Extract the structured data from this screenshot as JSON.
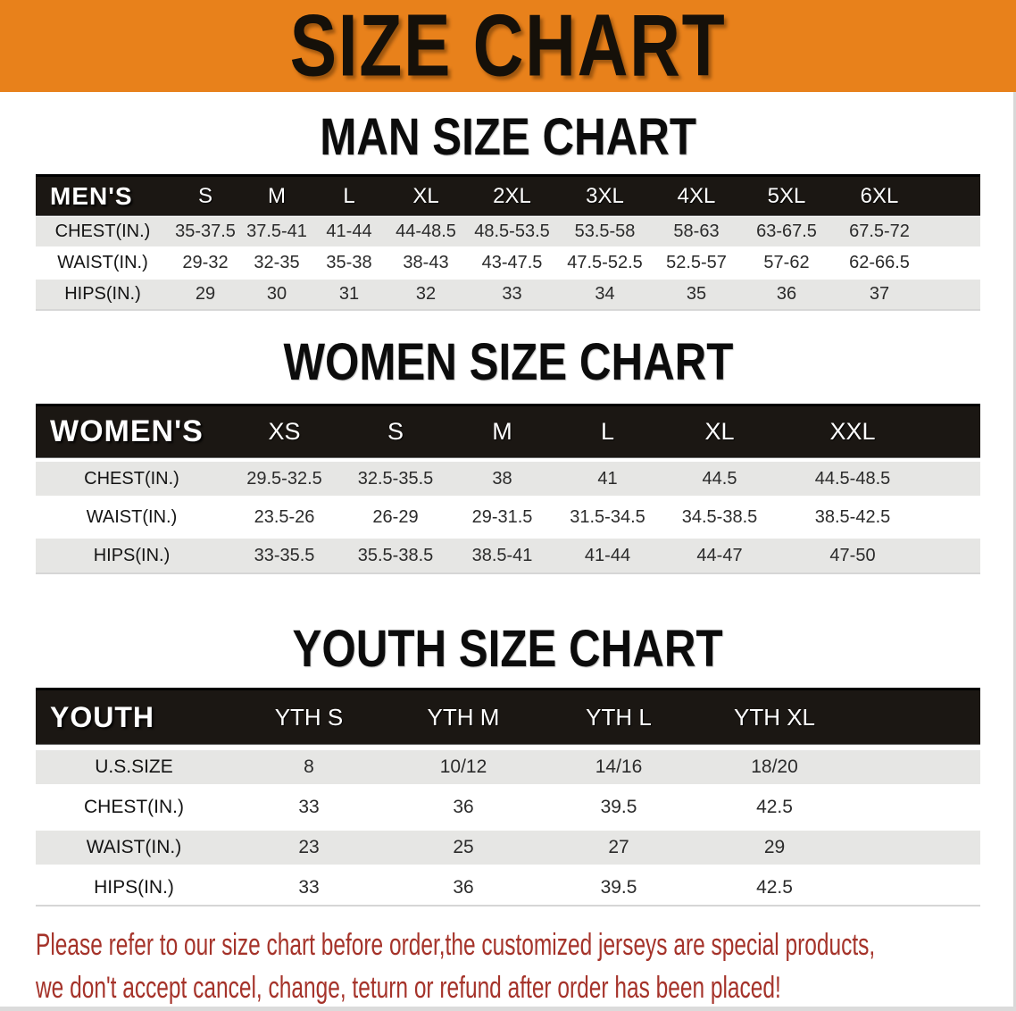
{
  "banner": {
    "title": "SIZE CHART",
    "bg_color": "#E8811B"
  },
  "colors": {
    "header_band": "#1B1713",
    "shaded_row": "#E6E6E4",
    "disclaimer_red": "#A5332A"
  },
  "sections": [
    {
      "title": "MAN SIZE CHART",
      "header_label": "MEN'S",
      "columns": [
        "S",
        "M",
        "L",
        "XL",
        "2XL",
        "3XL",
        "4XL",
        "5XL",
        "6XL"
      ],
      "rows": [
        {
          "label": "CHEST(IN.)",
          "values": [
            "35-37.5",
            "37.5-41",
            "41-44",
            "44-48.5",
            "48.5-53.5",
            "53.5-58",
            "58-63",
            "63-67.5",
            "67.5-72"
          ]
        },
        {
          "label": "WAIST(IN.)",
          "values": [
            "29-32",
            "32-35",
            "35-38",
            "38-43",
            "43-47.5",
            "47.5-52.5",
            "52.5-57",
            "57-62",
            "62-66.5"
          ]
        },
        {
          "label": "HIPS(IN.)",
          "values": [
            "29",
            "30",
            "31",
            "32",
            "33",
            "34",
            "35",
            "36",
            "37"
          ]
        }
      ]
    },
    {
      "title": "WOMEN SIZE CHART",
      "header_label": "WOMEN'S",
      "columns": [
        "XS",
        "S",
        "M",
        "L",
        "XL",
        "XXL"
      ],
      "rows": [
        {
          "label": "CHEST(IN.)",
          "values": [
            "29.5-32.5",
            "32.5-35.5",
            "38",
            "41",
            "44.5",
            "44.5-48.5"
          ]
        },
        {
          "label": "WAIST(IN.)",
          "values": [
            "23.5-26",
            "26-29",
            "29-31.5",
            "31.5-34.5",
            "34.5-38.5",
            "38.5-42.5"
          ]
        },
        {
          "label": "HIPS(IN.)",
          "values": [
            "33-35.5",
            "35.5-38.5",
            "38.5-41",
            "41-44",
            "44-47",
            "47-50"
          ]
        }
      ]
    },
    {
      "title": "YOUTH SIZE CHART",
      "header_label": "YOUTH",
      "columns": [
        "YTH S",
        "YTH M",
        "YTH L",
        "YTH XL"
      ],
      "rows": [
        {
          "label": "U.S.SIZE",
          "values": [
            "8",
            "10/12",
            "14/16",
            "18/20"
          ]
        },
        {
          "label": "CHEST(IN.)",
          "values": [
            "33",
            "36",
            "39.5",
            "42.5"
          ]
        },
        {
          "label": "WAIST(IN.)",
          "values": [
            "23",
            "25",
            "27",
            "29"
          ]
        },
        {
          "label": "HIPS(IN.)",
          "values": [
            "33",
            "36",
            "39.5",
            "42.5"
          ]
        }
      ]
    }
  ],
  "disclaimer": {
    "line1": "Please refer to our size chart before order,the customized jerseys are special products,",
    "line2": "we don't accept cancel, change, teturn or refund after order has been placed!"
  }
}
